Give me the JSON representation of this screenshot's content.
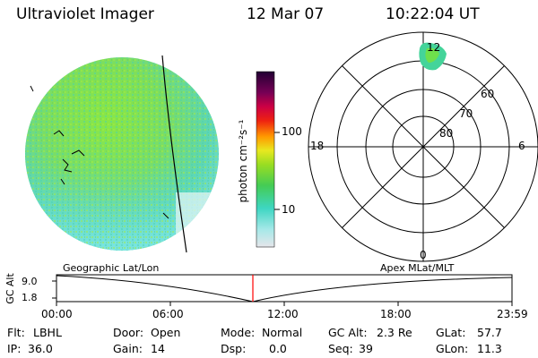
{
  "header": {
    "instrument": "Ultraviolet Imager",
    "date": "12 Mar 07",
    "time": "10:22:04 UT"
  },
  "colorbar": {
    "unit_label": "photon cm⁻²s⁻¹",
    "tick_100": "100",
    "tick_10": "10"
  },
  "polar_plot": {
    "label_top": "12",
    "label_left": "18",
    "label_right": "6",
    "label_bottom": "0",
    "ring_60": "60",
    "ring_70": "70",
    "ring_80": "80"
  },
  "timeline": {
    "left_title": "Geographic Lat/Lon",
    "right_title": "Apex MLat/MLT",
    "axis_label": "GC Alt",
    "y_top": "9.0",
    "y_bottom": "1.8",
    "x_ticks": [
      "00:00",
      "06:00",
      "12:00",
      "18:00",
      "23:59"
    ],
    "marker_color": "#ff0000"
  },
  "info": {
    "flt_label": "Flt:",
    "flt_value": "LBHL",
    "ip_label": "IP:",
    "ip_value": "36.0",
    "door_label": "Door:",
    "door_value": "Open",
    "gain_label": "Gain:",
    "gain_value": "14",
    "mode_label": "Mode:",
    "mode_value": "Normal",
    "dsp_label": "Dsp:",
    "dsp_value": "0.0",
    "gcalt_label": "GC Alt:",
    "gcalt_value": "2.3 Re",
    "seq_label": "Seq:",
    "seq_value": "39",
    "glat_label": "GLat:",
    "glat_value": "57.7",
    "glon_label": "GLon:",
    "glon_value": "11.3"
  }
}
